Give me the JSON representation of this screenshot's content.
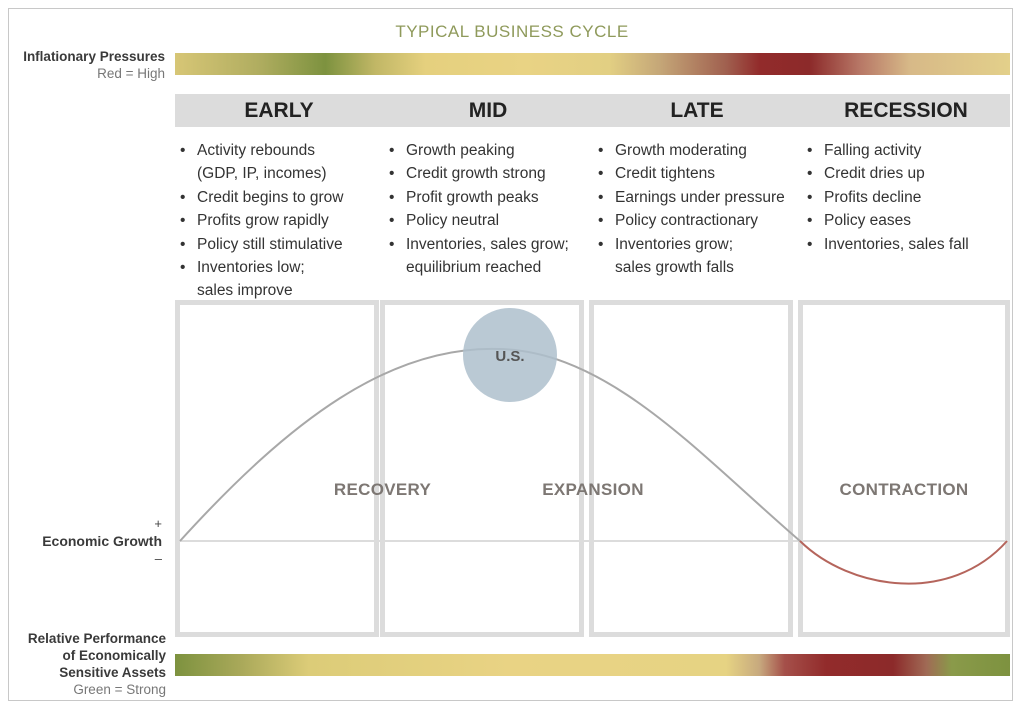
{
  "title": "TYPICAL BUSINESS CYCLE",
  "inflation": {
    "label": "Inflationary Pressures",
    "legend": "Red = High"
  },
  "performance": {
    "label_line1": "Relative Performance",
    "label_line2": "of Economically",
    "label_line3": "Sensitive Assets",
    "legend": "Green = Strong"
  },
  "growth": {
    "plus": "+",
    "label": "Economic Growth",
    "minus": "–"
  },
  "phases": [
    {
      "name": "EARLY",
      "bullets": [
        "Activity rebounds\n(GDP, IP, incomes)",
        "Credit begins to grow",
        "Profits grow rapidly",
        "Policy still stimulative",
        "Inventories low;\nsales improve"
      ]
    },
    {
      "name": "MID",
      "bullets": [
        "Growth peaking",
        "Credit growth strong",
        "Profit growth peaks",
        "Policy neutral",
        "Inventories, sales grow;\nequilibrium reached"
      ]
    },
    {
      "name": "LATE",
      "bullets": [
        "Growth moderating",
        "Credit tightens",
        "Earnings under pressure",
        "Policy contractionary",
        "Inventories grow;\nsales growth falls"
      ]
    },
    {
      "name": "RECESSION",
      "bullets": [
        "Falling activity",
        "Credit dries up",
        "Profits decline",
        "Policy eases",
        "Inventories, sales fall"
      ]
    }
  ],
  "regions": {
    "recovery": "RECOVERY",
    "expansion": "EXPANSION",
    "contraction": "CONTRACTION"
  },
  "marker": {
    "label": "U.S."
  },
  "colors": {
    "title": "#8f9a5b",
    "curve_positive": "#a8a8a8",
    "curve_negative": "#b5655c",
    "marker_fill": "#aebfcd",
    "header_bg": "#dcdcdc",
    "high_red": "#922b2b",
    "strong_green": "#7d923f"
  }
}
